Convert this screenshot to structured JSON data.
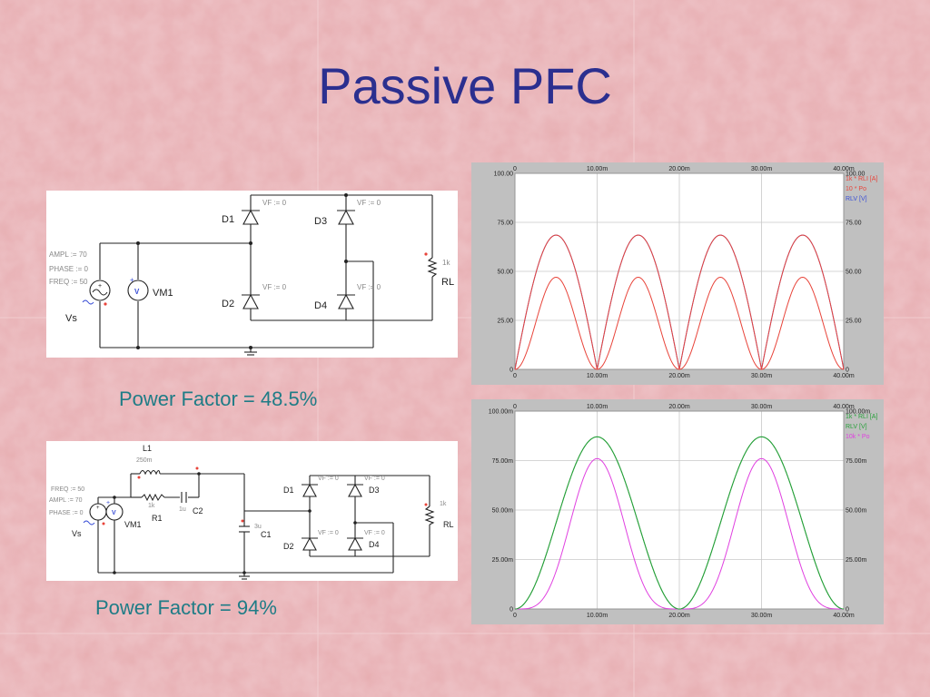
{
  "slide": {
    "title": "Passive PFC",
    "pf1_label": "Power Factor = 48.5%",
    "pf2_label": "Power Factor = 94%"
  },
  "colors": {
    "background": "#e7aeb2",
    "title": "#2b2f8f",
    "pf_text": "#1f7c86",
    "trace_red": "#e8443a",
    "trace_blue": "#3a4fd6",
    "trace_green": "#27a03a",
    "trace_magenta": "#e040e0"
  },
  "circuit1": {
    "ampl": "AMPL := 70",
    "phase": "PHASE := 0",
    "freq": "FREQ := 50",
    "vs": "Vs",
    "vm1": "VM1",
    "vm_symbol": "V",
    "d1": "D1",
    "d2": "D2",
    "d3": "D3",
    "d4": "D4",
    "vf": "VF := 0",
    "rl": "RL",
    "rl_value": "1k",
    "plus": "+"
  },
  "circuit2": {
    "freq": "FREQ := 50",
    "ampl": "AMPL := 70",
    "phase": "PHASE := 0",
    "vs": "Vs",
    "vm1": "VM1",
    "vm_symbol": "V",
    "l1": "L1",
    "l1_value": "250m",
    "r1": "R1",
    "r1_value": "1k",
    "c2": "C2",
    "c2_value": "1u",
    "c1": "C1",
    "c1_value": "3u",
    "d1": "D1",
    "d2": "D2",
    "d3": "D3",
    "d4": "D4",
    "vf": "VF := 0",
    "rl": "RL",
    "rl_value": "1k",
    "plus": "+"
  },
  "chart_data": [
    {
      "type": "line",
      "x_ticks": [
        "0",
        "10.00m",
        "20.00m",
        "30.00m",
        "40.00m"
      ],
      "y_ticks": [
        "0",
        "25.00",
        "50.00",
        "75.00",
        "100.00"
      ],
      "xlim": [
        0,
        0.04
      ],
      "ylim": [
        0,
        100
      ],
      "legend": [
        "1k * RLI [A]",
        "10 * Po",
        "RLV [V]"
      ],
      "legend_placement": "top-right",
      "grid": true,
      "series": [
        {
          "name": "RLV [V]",
          "shape": "rectified sine",
          "amplitude": 68.5,
          "period": 0.01,
          "color": "#3a4fd6"
        },
        {
          "name": "10 * Po",
          "shape": "rectified sine squared",
          "amplitude": 47,
          "period": 0.01,
          "color": "#e8443a"
        },
        {
          "name": "1k * RLI [A]",
          "shape": "rectified sine",
          "amplitude": 68.5,
          "period": 0.01,
          "color": "#e8443a"
        }
      ]
    },
    {
      "type": "line",
      "x_ticks": [
        "0",
        "10.00m",
        "20.00m",
        "30.00m",
        "40.00m"
      ],
      "y_ticks": [
        "0",
        "25.00m",
        "50.00m",
        "75.00m",
        "100.00m"
      ],
      "xlim": [
        0,
        0.04
      ],
      "ylim": [
        0,
        0.1
      ],
      "legend": [
        "1k * RLI [A]",
        "RLV [V]",
        "10k * Po"
      ],
      "legend_placement": "top-right",
      "grid": true,
      "series": [
        {
          "name": "RLV [V]",
          "shape": "raised cosine",
          "peak": 0.087,
          "peak_times": [
            0.01,
            0.03
          ],
          "color": "#27a03a"
        },
        {
          "name": "10k * Po",
          "shape": "raised cosine squared",
          "peak": 0.076,
          "peak_times": [
            0.01,
            0.03
          ],
          "color": "#e040e0"
        },
        {
          "name": "1k * RLI [A]",
          "shape": "raised cosine",
          "peak": 0.087,
          "peak_times": [
            0.01,
            0.03
          ],
          "color": "#27a03a"
        }
      ]
    }
  ]
}
